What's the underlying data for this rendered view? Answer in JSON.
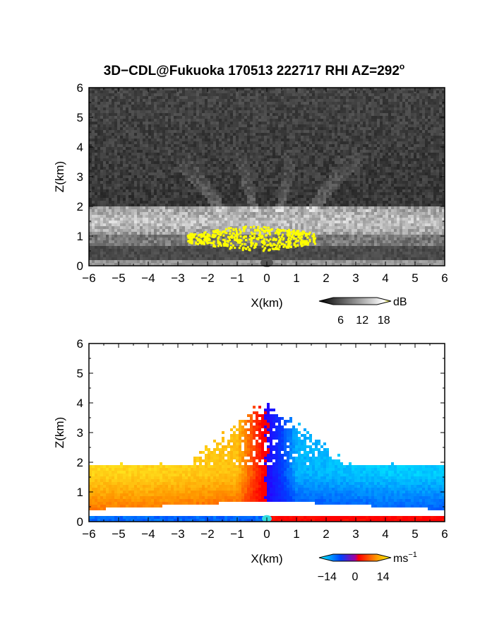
{
  "title": "3D−CDL@Fukuoka 170513 222717 RHI AZ=292",
  "title_suffix": "o",
  "chart_data": [
    {
      "type": "heatmap",
      "quantity": "backscatter",
      "xlabel": "X(km)",
      "ylabel": "Z(km)",
      "xlim": [
        -6,
        6
      ],
      "ylim": [
        0,
        6
      ],
      "xticks": [
        "−6",
        "−5",
        "−4",
        "−3",
        "−2",
        "−1",
        "0",
        "1",
        "2",
        "3",
        "4",
        "5",
        "6"
      ],
      "yticks": [
        "0",
        "1",
        "2",
        "3",
        "4",
        "5",
        "6"
      ],
      "colorbar": {
        "unit": "dB",
        "ticks": [
          "6",
          "12",
          "18"
        ],
        "tick_values": [
          6,
          12,
          18
        ],
        "range": [
          0,
          20
        ]
      },
      "colormap": [
        "#000000",
        "#ffffff",
        "#ffff00"
      ],
      "features": [
        {
          "name": "aerosol_layer",
          "z_range": [
            0.7,
            2.0
          ],
          "value_db": 12
        },
        {
          "name": "strong_echo",
          "x_range": [
            -2.7,
            1.6
          ],
          "z_range": [
            0.7,
            1.3
          ],
          "value_db": 19
        }
      ]
    },
    {
      "type": "heatmap",
      "quantity": "radial_velocity",
      "xlabel": "X(km)",
      "ylabel": "Z(km)",
      "xlim": [
        -6,
        6
      ],
      "ylim": [
        0,
        6
      ],
      "xticks": [
        "−6",
        "−5",
        "−4",
        "−3",
        "−2",
        "−1",
        "0",
        "1",
        "2",
        "3",
        "4",
        "5",
        "6"
      ],
      "yticks": [
        "0",
        "1",
        "2",
        "3",
        "4",
        "5",
        "6"
      ],
      "colorbar": {
        "unit": "ms",
        "unit_exp": "−1",
        "ticks": [
          "−14",
          "0",
          "14"
        ],
        "tick_values": [
          -14,
          0,
          14
        ],
        "range": [
          -18,
          18
        ]
      },
      "colormap": [
        "#00ffff",
        "#0000ff",
        "#ff0000",
        "#ffff00"
      ],
      "features": [
        {
          "name": "left_side",
          "x_range": [
            -6,
            0
          ],
          "velocity_ms": 10
        },
        {
          "name": "right_side",
          "x_range": [
            0,
            6
          ],
          "velocity_ms": -10
        },
        {
          "name": "surface_layer_left",
          "z_range": [
            0,
            0.2
          ],
          "velocity_ms": -12
        },
        {
          "name": "surface_layer_right",
          "z_range": [
            0,
            0.2
          ],
          "velocity_ms": 3
        }
      ]
    }
  ]
}
